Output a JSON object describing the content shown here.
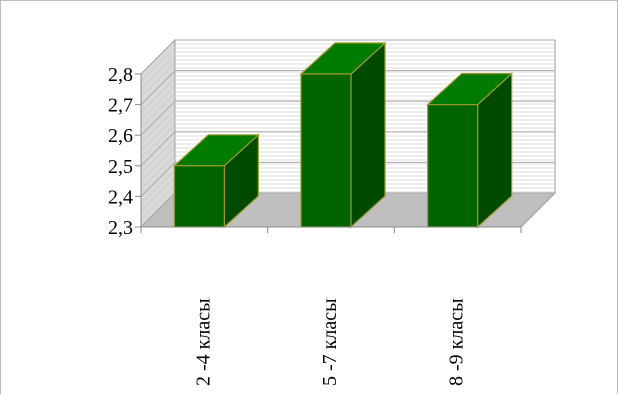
{
  "chart_data": {
    "type": "bar",
    "categories": [
      "2 -4 класы",
      "5 -7 класы",
      "8 -9 класы"
    ],
    "values": [
      2.5,
      2.8,
      2.7
    ],
    "yticks": [
      "2,3",
      "2,4",
      "2,5",
      "2,6",
      "2,7",
      "2,8"
    ],
    "ylim": [
      2.3,
      2.8
    ],
    "title": "",
    "xlabel": "",
    "ylabel": "",
    "grid": true,
    "legend": "none",
    "colors": {
      "bar_front": "#006400",
      "bar_side": "#004a00",
      "bar_top": "#007a00",
      "bar_edge": "#9a9a2a",
      "back_wall": "#ffffff",
      "side_wall": "#d9d9d9",
      "floor": "#bfbfbf",
      "gridline": "#aaaaaa"
    }
  }
}
